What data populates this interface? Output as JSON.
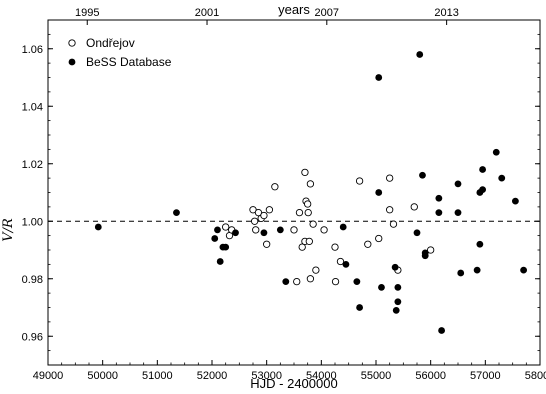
{
  "chart_data": {
    "type": "scatter",
    "title": "",
    "xlabel": "HJD - 2400000",
    "ylabel": "V/R",
    "x2label": "years",
    "xlim": [
      49000,
      58000
    ],
    "ylim": [
      0.95,
      1.07
    ],
    "x_ticks": [
      49000,
      50000,
      51000,
      52000,
      53000,
      54000,
      55000,
      56000,
      57000,
      58000
    ],
    "x_tick_labels": [
      "49000",
      "50000",
      "51000",
      "52000",
      "53000",
      "54000",
      "55000",
      "56000",
      "57000",
      "58000"
    ],
    "y_ticks": [
      0.96,
      0.98,
      1.0,
      1.02,
      1.04,
      1.06
    ],
    "y_tick_labels": [
      "0.96",
      "0.98",
      "1.00",
      "1.02",
      "1.04",
      "1.06"
    ],
    "x2_ticks": [
      49718,
      51909,
      54100,
      56292
    ],
    "x2_tick_labels": [
      "1995",
      "2001",
      "2007",
      "2013"
    ],
    "reference_line": 1.0,
    "legend_position": "top-left",
    "series": [
      {
        "name": "Ondřejov",
        "marker": "open-circle",
        "points": [
          [
            52250,
            0.998
          ],
          [
            52320,
            0.995
          ],
          [
            52360,
            0.997
          ],
          [
            52750,
            1.004
          ],
          [
            52780,
            1.0
          ],
          [
            52850,
            1.003
          ],
          [
            52900,
            1.001
          ],
          [
            52950,
            1.002
          ],
          [
            53000,
            0.992
          ],
          [
            53050,
            1.004
          ],
          [
            53150,
            1.012
          ],
          [
            52800,
            0.997
          ],
          [
            53500,
            0.997
          ],
          [
            53600,
            1.003
          ],
          [
            53550,
            0.979
          ],
          [
            53650,
            0.991
          ],
          [
            53700,
            0.993
          ],
          [
            53700,
            1.017
          ],
          [
            53720,
            1.007
          ],
          [
            53750,
            1.006
          ],
          [
            53760,
            1.003
          ],
          [
            53780,
            0.993
          ],
          [
            53800,
            1.013
          ],
          [
            53800,
            0.98
          ],
          [
            53850,
            0.999
          ],
          [
            53900,
            0.983
          ],
          [
            54050,
            0.997
          ],
          [
            54250,
            0.991
          ],
          [
            54260,
            0.979
          ],
          [
            54350,
            0.986
          ],
          [
            54700,
            1.014
          ],
          [
            54850,
            0.992
          ],
          [
            55050,
            0.994
          ],
          [
            55250,
            1.015
          ],
          [
            55250,
            1.004
          ],
          [
            55320,
            0.999
          ],
          [
            55400,
            0.983
          ],
          [
            55700,
            1.005
          ],
          [
            56000,
            0.99
          ]
        ]
      },
      {
        "name": "BeSS Database",
        "marker": "filled-circle",
        "points": [
          [
            49920,
            0.998
          ],
          [
            51350,
            1.003
          ],
          [
            52050,
            0.994
          ],
          [
            52100,
            0.997
          ],
          [
            52150,
            0.986
          ],
          [
            52200,
            0.991
          ],
          [
            52250,
            0.991
          ],
          [
            52430,
            0.996
          ],
          [
            52950,
            0.996
          ],
          [
            53250,
            0.997
          ],
          [
            53350,
            0.979
          ],
          [
            54400,
            0.998
          ],
          [
            54450,
            0.985
          ],
          [
            54650,
            0.979
          ],
          [
            54700,
            0.97
          ],
          [
            55050,
            1.05
          ],
          [
            55050,
            1.01
          ],
          [
            55100,
            0.977
          ],
          [
            55350,
            0.984
          ],
          [
            55370,
            0.969
          ],
          [
            55400,
            0.972
          ],
          [
            55400,
            0.977
          ],
          [
            55750,
            0.996
          ],
          [
            55800,
            1.058
          ],
          [
            55850,
            1.016
          ],
          [
            55900,
            0.988
          ],
          [
            55900,
            0.989
          ],
          [
            56150,
            1.003
          ],
          [
            56150,
            1.008
          ],
          [
            56200,
            0.962
          ],
          [
            56500,
            1.003
          ],
          [
            56500,
            1.013
          ],
          [
            56550,
            0.982
          ],
          [
            56850,
            0.983
          ],
          [
            56900,
            0.992
          ],
          [
            56900,
            1.01
          ],
          [
            56950,
            1.018
          ],
          [
            56950,
            1.011
          ],
          [
            57200,
            1.024
          ],
          [
            57300,
            1.015
          ],
          [
            57550,
            1.007
          ],
          [
            57700,
            0.983
          ]
        ]
      }
    ]
  }
}
